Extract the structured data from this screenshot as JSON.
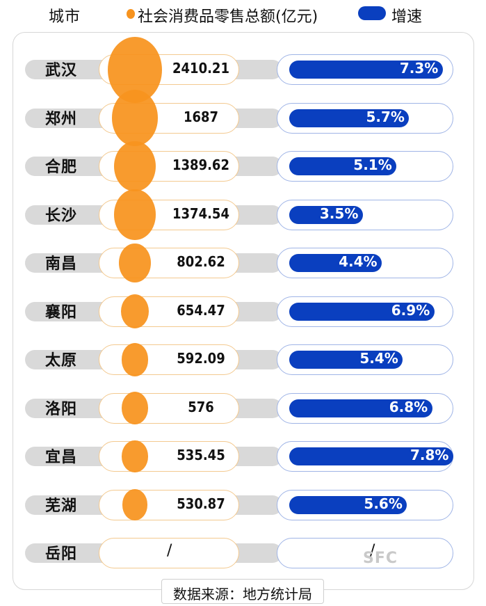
{
  "header": {
    "city_label": "城市",
    "sales_legend": "社会消费品零售总额(亿元)",
    "growth_legend": "增速"
  },
  "colors": {
    "sales": "#f7931e",
    "growth": "#0a3fbf",
    "row_bg": "#d9d9d9"
  },
  "chart_data": {
    "type": "table",
    "series": [
      {
        "name": "社会消费品零售总额(亿元)",
        "values": [
          2410.21,
          1687,
          1389.62,
          1374.54,
          802.62,
          654.47,
          592.09,
          576,
          535.45,
          530.87,
          null
        ]
      },
      {
        "name": "增速",
        "values": [
          7.3,
          5.7,
          5.1,
          3.5,
          4.4,
          6.9,
          5.4,
          6.8,
          7.8,
          5.6,
          null
        ]
      }
    ],
    "rows": [
      {
        "city": "武汉",
        "sales": "2410.21",
        "growth": "7.3%"
      },
      {
        "city": "郑州",
        "sales": "1687",
        "growth": "5.7%"
      },
      {
        "city": "合肥",
        "sales": "1389.62",
        "growth": "5.1%"
      },
      {
        "city": "长沙",
        "sales": "1374.54",
        "growth": "3.5%"
      },
      {
        "city": "南昌",
        "sales": "802.62",
        "growth": "4.4%"
      },
      {
        "city": "襄阳",
        "sales": "654.47",
        "growth": "6.9%"
      },
      {
        "city": "太原",
        "sales": "592.09",
        "growth": "5.4%"
      },
      {
        "city": "洛阳",
        "sales": "576",
        "growth": "6.8%"
      },
      {
        "city": "宜昌",
        "sales": "535.45",
        "growth": "7.8%"
      },
      {
        "city": "芜湖",
        "sales": "530.87",
        "growth": "5.6%"
      },
      {
        "city": "岳阳",
        "sales": "/",
        "growth": "/"
      }
    ]
  },
  "source": "数据来源：地方统计局",
  "watermark": "SFC"
}
